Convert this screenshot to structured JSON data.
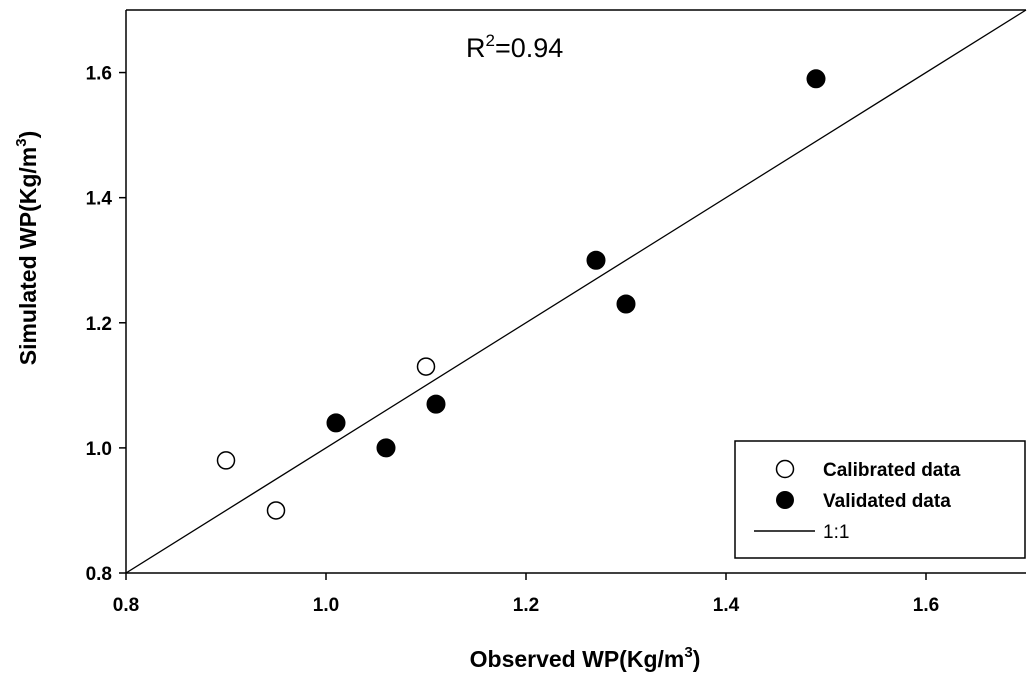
{
  "chart_data": {
    "type": "scatter",
    "title": "",
    "annotation": {
      "label": "R",
      "superscript": "2",
      "value": "=0.94"
    },
    "xlabel": {
      "text": "Observed WP(Kg/m",
      "sup": "3",
      "close": ")"
    },
    "ylabel": {
      "text": "Simulated WP(Kg/m",
      "sup": "3",
      "close": ")"
    },
    "xlim": [
      0.8,
      1.7
    ],
    "ylim": [
      0.8,
      1.7
    ],
    "xticks": [
      "0.8",
      "1.0",
      "1.2",
      "1.4",
      "1.6"
    ],
    "yticks": [
      "0.8",
      "1.0",
      "1.2",
      "1.4",
      "1.6"
    ],
    "grid": false,
    "legend_position": "bottom-right",
    "series": [
      {
        "name": "Calibrated data",
        "marker": "open-circle",
        "color": "#000000",
        "points": [
          {
            "x": 0.9,
            "y": 0.98
          },
          {
            "x": 0.95,
            "y": 0.9
          },
          {
            "x": 1.1,
            "y": 1.13
          }
        ]
      },
      {
        "name": "Validated data",
        "marker": "filled-circle",
        "color": "#000000",
        "points": [
          {
            "x": 1.01,
            "y": 1.04
          },
          {
            "x": 1.06,
            "y": 1.0
          },
          {
            "x": 1.11,
            "y": 1.07
          },
          {
            "x": 1.27,
            "y": 1.3
          },
          {
            "x": 1.3,
            "y": 1.23
          },
          {
            "x": 1.49,
            "y": 1.59
          }
        ]
      }
    ],
    "reference_line": {
      "name": "1:1",
      "from": [
        0.8,
        0.8
      ],
      "to": [
        1.7,
        1.7
      ]
    }
  }
}
